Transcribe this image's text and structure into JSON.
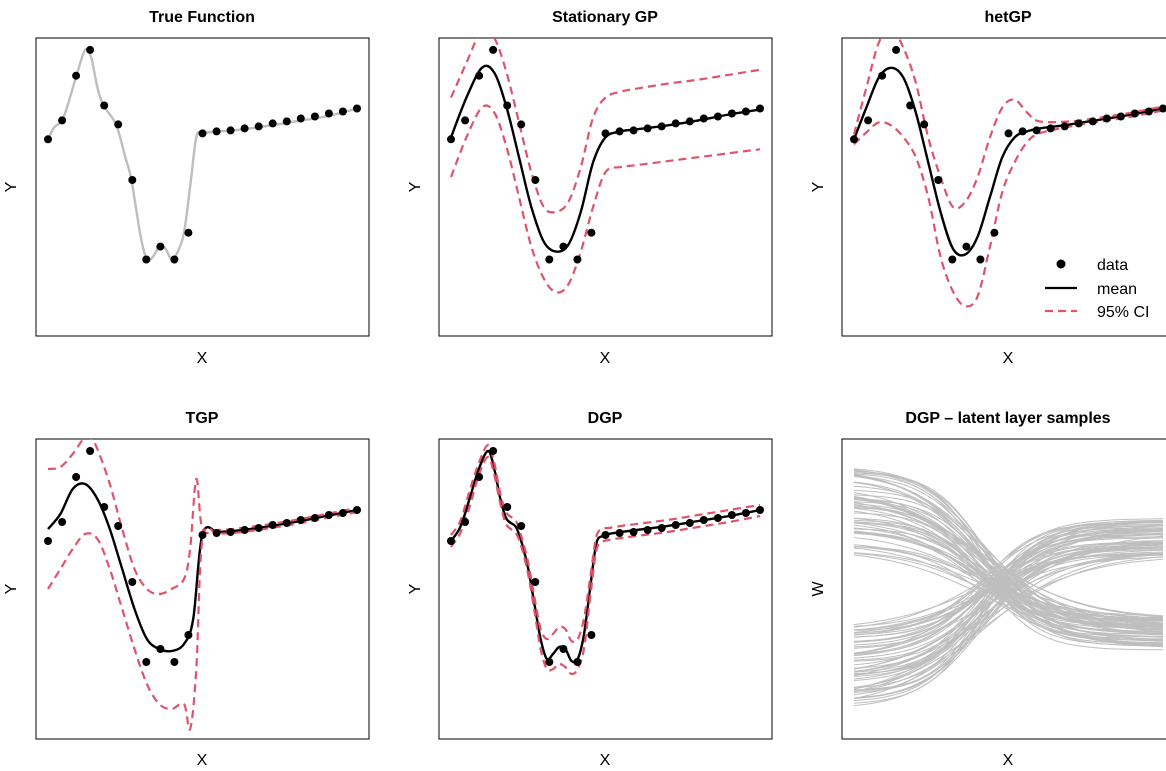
{
  "colors": {
    "data": "#000000",
    "mean": "#000000",
    "ci": "#DF536B",
    "true_fn": "#BEBEBE",
    "samples": "#BEBEBE"
  },
  "legend": {
    "placement": "bottom-right of hetGP panel",
    "entries": [
      "data",
      "mean",
      "95% CI"
    ]
  },
  "chart_data": [
    {
      "type": "line",
      "title": "True Function",
      "xlabel": "X",
      "ylabel": "Y",
      "ticks_shown": false,
      "xlim": [
        0,
        1
      ],
      "ylim": [
        -1.7,
        1.3
      ],
      "points": {
        "x": [
          0,
          0.0455,
          0.0909,
          0.1364,
          0.1818,
          0.2273,
          0.2727,
          0.3182,
          0.3636,
          0.4091,
          0.4545,
          0.5,
          0.5455,
          0.5909,
          0.6364,
          0.6818,
          0.7273,
          0.7727,
          0.8182,
          0.8636,
          0.9091,
          0.9545,
          1
        ],
        "y": [
          0.28,
          0.47,
          0.92,
          1.18,
          0.62,
          0.43,
          -0.13,
          -0.93,
          -0.8,
          -0.93,
          -0.66,
          0.34,
          0.36,
          0.37,
          0.39,
          0.41,
          0.44,
          0.46,
          0.49,
          0.51,
          0.54,
          0.56,
          0.59
        ]
      },
      "series": [
        {
          "name": "true",
          "style": "grey-line",
          "x": [
            0,
            0.02,
            0.05,
            0.09,
            0.12,
            0.14,
            0.16,
            0.18,
            0.22,
            0.25,
            0.27,
            0.3,
            0.32,
            0.34,
            0.36,
            0.38,
            0.4,
            0.42,
            0.44,
            0.46,
            0.48,
            0.5,
            0.55,
            0.6,
            0.7,
            0.8,
            0.9,
            1
          ],
          "y": [
            0.28,
            0.4,
            0.5,
            0.9,
            1.18,
            1.1,
            0.8,
            0.62,
            0.43,
            0.1,
            -0.13,
            -0.7,
            -0.93,
            -0.9,
            -0.8,
            -0.82,
            -0.93,
            -0.85,
            -0.66,
            -0.2,
            0.3,
            0.34,
            0.36,
            0.37,
            0.41,
            0.46,
            0.51,
            0.59
          ]
        }
      ]
    },
    {
      "type": "line",
      "title": "Stationary GP",
      "xlabel": "X",
      "ylabel": "Y",
      "ticks_shown": false,
      "xlim": [
        0,
        1
      ],
      "ylim": [
        -1.7,
        1.3
      ],
      "points": {
        "x": [
          0,
          0.0455,
          0.0909,
          0.1364,
          0.1818,
          0.2273,
          0.2727,
          0.3182,
          0.3636,
          0.4091,
          0.4545,
          0.5,
          0.5455,
          0.5909,
          0.6364,
          0.6818,
          0.7273,
          0.7727,
          0.8182,
          0.8636,
          0.9091,
          0.9545,
          1
        ],
        "y": [
          0.28,
          0.47,
          0.92,
          1.18,
          0.62,
          0.43,
          -0.13,
          -0.93,
          -0.8,
          -0.93,
          -0.66,
          0.34,
          0.36,
          0.37,
          0.39,
          0.41,
          0.44,
          0.46,
          0.49,
          0.51,
          0.54,
          0.56,
          0.59
        ]
      },
      "series": [
        {
          "name": "mean",
          "style": "mean",
          "x": [
            0,
            0.05,
            0.1,
            0.14,
            0.18,
            0.22,
            0.26,
            0.3,
            0.34,
            0.38,
            0.42,
            0.46,
            0.5,
            0.55,
            0.6,
            0.7,
            0.8,
            0.9,
            1
          ],
          "y": [
            0.3,
            0.7,
            1.0,
            0.95,
            0.6,
            0.1,
            -0.4,
            -0.75,
            -0.85,
            -0.78,
            -0.45,
            0.05,
            0.3,
            0.36,
            0.38,
            0.42,
            0.47,
            0.53,
            0.58
          ]
        },
        {
          "name": "upper",
          "style": "ci",
          "x": [
            0,
            0.05,
            0.1,
            0.14,
            0.18,
            0.22,
            0.26,
            0.3,
            0.34,
            0.38,
            0.42,
            0.46,
            0.5,
            0.55,
            0.6,
            0.7,
            0.8,
            0.9,
            1
          ],
          "y": [
            0.7,
            1.05,
            1.38,
            1.3,
            0.95,
            0.45,
            -0.05,
            -0.4,
            -0.45,
            -0.35,
            0.0,
            0.5,
            0.7,
            0.76,
            0.79,
            0.84,
            0.88,
            0.93,
            0.98
          ]
        },
        {
          "name": "lower",
          "style": "ci",
          "x": [
            0,
            0.05,
            0.1,
            0.14,
            0.18,
            0.22,
            0.26,
            0.3,
            0.34,
            0.38,
            0.42,
            0.46,
            0.5,
            0.55,
            0.6,
            0.7,
            0.8,
            0.9,
            1
          ],
          "y": [
            -0.1,
            0.3,
            0.6,
            0.55,
            0.2,
            -0.3,
            -0.8,
            -1.12,
            -1.26,
            -1.18,
            -0.85,
            -0.4,
            -0.05,
            0.0,
            0.02,
            0.06,
            0.1,
            0.14,
            0.18
          ]
        }
      ]
    },
    {
      "type": "line",
      "title": "hetGP",
      "xlabel": "X",
      "ylabel": "Y",
      "ticks_shown": false,
      "xlim": [
        0,
        1
      ],
      "ylim": [
        -1.7,
        1.3
      ],
      "points": {
        "x": [
          0,
          0.0455,
          0.0909,
          0.1364,
          0.1818,
          0.2273,
          0.2727,
          0.3182,
          0.3636,
          0.4091,
          0.4545,
          0.5,
          0.5455,
          0.5909,
          0.6364,
          0.6818,
          0.7273,
          0.7727,
          0.8182,
          0.8636,
          0.9091,
          0.9545,
          1
        ],
        "y": [
          0.28,
          0.47,
          0.92,
          1.18,
          0.62,
          0.43,
          -0.13,
          -0.93,
          -0.8,
          -0.93,
          -0.66,
          0.34,
          0.36,
          0.37,
          0.39,
          0.41,
          0.44,
          0.46,
          0.49,
          0.51,
          0.54,
          0.56,
          0.59
        ]
      },
      "series": [
        {
          "name": "mean",
          "style": "mean",
          "x": [
            0,
            0.04,
            0.08,
            0.12,
            0.16,
            0.2,
            0.24,
            0.28,
            0.32,
            0.36,
            0.4,
            0.44,
            0.48,
            0.52,
            0.56,
            0.6,
            0.7,
            0.8,
            0.9,
            1
          ],
          "y": [
            0.28,
            0.6,
            0.9,
            1.0,
            0.9,
            0.55,
            0.05,
            -0.45,
            -0.82,
            -0.88,
            -0.7,
            -0.3,
            0.1,
            0.3,
            0.36,
            0.39,
            0.43,
            0.48,
            0.53,
            0.59
          ]
        },
        {
          "name": "upper",
          "style": "ci",
          "x": [
            0,
            0.04,
            0.08,
            0.12,
            0.16,
            0.2,
            0.24,
            0.28,
            0.32,
            0.36,
            0.4,
            0.44,
            0.48,
            0.52,
            0.56,
            0.6,
            0.7,
            0.8,
            0.9,
            1
          ],
          "y": [
            0.33,
            0.8,
            1.25,
            1.4,
            1.2,
            0.85,
            0.3,
            -0.1,
            -0.4,
            -0.35,
            -0.1,
            0.3,
            0.6,
            0.68,
            0.55,
            0.46,
            0.46,
            0.5,
            0.55,
            0.61
          ]
        },
        {
          "name": "lower",
          "style": "ci",
          "x": [
            0,
            0.04,
            0.08,
            0.12,
            0.16,
            0.2,
            0.24,
            0.28,
            0.32,
            0.36,
            0.4,
            0.44,
            0.48,
            0.52,
            0.56,
            0.6,
            0.7,
            0.8,
            0.9,
            1
          ],
          "y": [
            0.23,
            0.35,
            0.45,
            0.42,
            0.3,
            0.1,
            -0.3,
            -0.9,
            -1.25,
            -1.4,
            -1.3,
            -0.8,
            -0.25,
            0.05,
            0.25,
            0.34,
            0.41,
            0.46,
            0.51,
            0.57
          ]
        }
      ]
    },
    {
      "type": "line",
      "title": "TGP",
      "xlabel": "X",
      "ylabel": "Y",
      "ticks_shown": false,
      "xlim": [
        0,
        1
      ],
      "ylim": [
        -1.7,
        1.3
      ],
      "points": {
        "x": [
          0,
          0.0455,
          0.0909,
          0.1364,
          0.1818,
          0.2273,
          0.2727,
          0.3182,
          0.3636,
          0.4091,
          0.4545,
          0.5,
          0.5455,
          0.5909,
          0.6364,
          0.6818,
          0.7273,
          0.7727,
          0.8182,
          0.8636,
          0.9091,
          0.9545,
          1
        ],
        "y": [
          0.28,
          0.47,
          0.92,
          1.18,
          0.62,
          0.43,
          -0.13,
          -0.93,
          -0.8,
          -0.93,
          -0.66,
          0.34,
          0.36,
          0.37,
          0.39,
          0.41,
          0.44,
          0.46,
          0.49,
          0.51,
          0.54,
          0.56,
          0.59
        ]
      },
      "series": [
        {
          "name": "mean",
          "style": "mean",
          "x": [
            0,
            0.04,
            0.08,
            0.12,
            0.16,
            0.2,
            0.24,
            0.28,
            0.32,
            0.36,
            0.4,
            0.44,
            0.47,
            0.5,
            0.55,
            0.6,
            0.7,
            0.8,
            0.9,
            1
          ],
          "y": [
            0.4,
            0.55,
            0.8,
            0.85,
            0.7,
            0.4,
            0.0,
            -0.4,
            -0.7,
            -0.8,
            -0.82,
            -0.75,
            -0.5,
            0.35,
            0.37,
            0.38,
            0.42,
            0.47,
            0.53,
            0.59
          ]
        },
        {
          "name": "upper",
          "style": "ci",
          "x": [
            0,
            0.04,
            0.08,
            0.12,
            0.14,
            0.16,
            0.2,
            0.24,
            0.28,
            0.32,
            0.36,
            0.4,
            0.44,
            0.46,
            0.48,
            0.5,
            0.55,
            0.6,
            0.7,
            0.8,
            0.9,
            1
          ],
          "y": [
            1.0,
            1.02,
            1.15,
            1.32,
            1.3,
            1.2,
            0.85,
            0.4,
            0.0,
            -0.2,
            -0.25,
            -0.2,
            -0.1,
            0.2,
            0.9,
            0.4,
            0.39,
            0.4,
            0.44,
            0.49,
            0.55,
            0.61
          ]
        },
        {
          "name": "lower",
          "style": "ci",
          "x": [
            0,
            0.04,
            0.08,
            0.12,
            0.16,
            0.2,
            0.24,
            0.28,
            0.32,
            0.36,
            0.4,
            0.44,
            0.46,
            0.48,
            0.5,
            0.55,
            0.6,
            0.7,
            0.8,
            0.9,
            1
          ],
          "y": [
            -0.2,
            0.0,
            0.2,
            0.35,
            0.3,
            0.0,
            -0.4,
            -0.8,
            -1.15,
            -1.35,
            -1.4,
            -1.35,
            -1.6,
            -1.0,
            0.3,
            0.35,
            0.36,
            0.4,
            0.45,
            0.51,
            0.57
          ]
        }
      ]
    },
    {
      "type": "line",
      "title": "DGP",
      "xlabel": "X",
      "ylabel": "Y",
      "ticks_shown": false,
      "xlim": [
        0,
        1
      ],
      "ylim": [
        -1.7,
        1.3
      ],
      "points": {
        "x": [
          0,
          0.0455,
          0.0909,
          0.1364,
          0.1818,
          0.2273,
          0.2727,
          0.3182,
          0.3636,
          0.4091,
          0.4545,
          0.5,
          0.5455,
          0.5909,
          0.6364,
          0.6818,
          0.7273,
          0.7727,
          0.8182,
          0.8636,
          0.9091,
          0.9545,
          1
        ],
        "y": [
          0.28,
          0.47,
          0.92,
          1.18,
          0.62,
          0.43,
          -0.13,
          -0.93,
          -0.8,
          -0.93,
          -0.66,
          0.34,
          0.36,
          0.37,
          0.39,
          0.41,
          0.44,
          0.46,
          0.49,
          0.51,
          0.54,
          0.56,
          0.59
        ]
      },
      "series": [
        {
          "name": "mean",
          "style": "mean",
          "x": [
            0,
            0.03,
            0.06,
            0.09,
            0.12,
            0.14,
            0.16,
            0.18,
            0.21,
            0.23,
            0.25,
            0.27,
            0.29,
            0.31,
            0.33,
            0.35,
            0.37,
            0.39,
            0.41,
            0.43,
            0.45,
            0.47,
            0.49,
            0.51,
            0.55,
            0.6,
            0.7,
            0.8,
            0.9,
            1
          ],
          "y": [
            0.28,
            0.42,
            0.7,
            1.0,
            1.18,
            1.0,
            0.7,
            0.5,
            0.42,
            0.25,
            0.0,
            -0.35,
            -0.7,
            -0.9,
            -0.85,
            -0.78,
            -0.8,
            -0.92,
            -0.9,
            -0.66,
            -0.2,
            0.25,
            0.33,
            0.35,
            0.37,
            0.39,
            0.43,
            0.48,
            0.53,
            0.59
          ]
        },
        {
          "name": "upper",
          "style": "ci",
          "x": [
            0,
            0.03,
            0.06,
            0.09,
            0.12,
            0.14,
            0.16,
            0.18,
            0.21,
            0.23,
            0.25,
            0.27,
            0.29,
            0.31,
            0.33,
            0.35,
            0.37,
            0.39,
            0.41,
            0.43,
            0.45,
            0.47,
            0.49,
            0.51,
            0.55,
            0.6,
            0.7,
            0.8,
            0.9,
            1
          ],
          "y": [
            0.34,
            0.48,
            0.78,
            1.06,
            1.24,
            1.06,
            0.75,
            0.56,
            0.48,
            0.3,
            0.06,
            -0.28,
            -0.6,
            -0.7,
            -0.65,
            -0.58,
            -0.6,
            -0.72,
            -0.7,
            -0.5,
            -0.1,
            0.32,
            0.4,
            0.41,
            0.43,
            0.45,
            0.49,
            0.54,
            0.59,
            0.64
          ]
        },
        {
          "name": "lower",
          "style": "ci",
          "x": [
            0,
            0.03,
            0.06,
            0.09,
            0.12,
            0.14,
            0.16,
            0.18,
            0.21,
            0.23,
            0.25,
            0.27,
            0.29,
            0.31,
            0.33,
            0.35,
            0.37,
            0.39,
            0.41,
            0.43,
            0.45,
            0.47,
            0.49,
            0.51,
            0.55,
            0.6,
            0.7,
            0.8,
            0.9,
            1
          ],
          "y": [
            0.22,
            0.36,
            0.62,
            0.94,
            1.12,
            0.94,
            0.65,
            0.44,
            0.36,
            0.2,
            -0.06,
            -0.42,
            -0.8,
            -1.0,
            -1.0,
            -0.95,
            -0.98,
            -1.05,
            -1.0,
            -0.8,
            -0.3,
            0.18,
            0.27,
            0.29,
            0.31,
            0.33,
            0.37,
            0.42,
            0.47,
            0.53
          ]
        }
      ]
    },
    {
      "type": "line",
      "title": "DGP – latent layer samples",
      "xlabel": "X",
      "ylabel": "W",
      "ticks_shown": false,
      "xlim": [
        0,
        1
      ],
      "ylim": [
        -1.35,
        1.35
      ],
      "sample_lines": {
        "count": 120,
        "crossing_x": 0.42,
        "crossing_w": 0.0,
        "upper_family": {
          "start_w": [
            0.35,
            1.15
          ],
          "end_w": [
            -0.55,
            -0.25
          ],
          "count": 60
        },
        "lower_family": {
          "start_w": [
            -1.1,
            -0.35
          ],
          "end_w": [
            0.3,
            0.65
          ],
          "count": 60
        }
      }
    }
  ]
}
